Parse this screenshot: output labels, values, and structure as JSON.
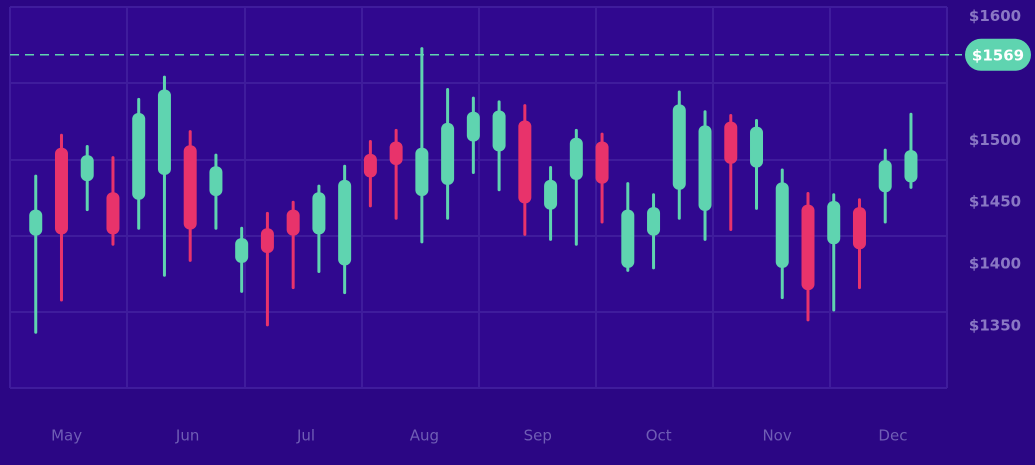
{
  "chart_data": {
    "type": "candlestick",
    "x": [
      0,
      1,
      2,
      3,
      4,
      5,
      6,
      7,
      8,
      9,
      10,
      11,
      12,
      13,
      14,
      15,
      16,
      17,
      18,
      19,
      20,
      21,
      22,
      23,
      24,
      25,
      26,
      27,
      28,
      29,
      30,
      31,
      32,
      33,
      34
    ],
    "open": [
      1423,
      1494,
      1467,
      1458,
      1452,
      1472,
      1496,
      1455,
      1401,
      1429,
      1444,
      1424,
      1399,
      1489,
      1499,
      1455,
      1464,
      1499,
      1491,
      1516,
      1444,
      1468,
      1499,
      1397,
      1423,
      1460,
      1443,
      1515,
      1478,
      1397,
      1448,
      1416,
      1446,
      1458,
      1466
    ],
    "high": [
      1471,
      1504,
      1495,
      1486,
      1533,
      1551,
      1507,
      1488,
      1429,
      1441,
      1450,
      1463,
      1479,
      1499,
      1508,
      1574,
      1541,
      1534,
      1531,
      1528,
      1478,
      1508,
      1505,
      1465,
      1456,
      1539,
      1523,
      1520,
      1516,
      1476,
      1457,
      1456,
      1452,
      1492,
      1521
    ],
    "low": [
      1345,
      1371,
      1444,
      1416,
      1429,
      1391,
      1403,
      1429,
      1378,
      1351,
      1381,
      1394,
      1377,
      1447,
      1437,
      1418,
      1437,
      1474,
      1460,
      1424,
      1420,
      1416,
      1434,
      1395,
      1397,
      1437,
      1420,
      1428,
      1445,
      1373,
      1355,
      1363,
      1381,
      1434,
      1462
    ],
    "close": [
      1444,
      1424,
      1488,
      1424,
      1522,
      1541,
      1428,
      1479,
      1421,
      1409,
      1423,
      1458,
      1468,
      1470,
      1480,
      1494,
      1514,
      1523,
      1524,
      1449,
      1468,
      1502,
      1465,
      1444,
      1446,
      1529,
      1512,
      1481,
      1511,
      1466,
      1379,
      1451,
      1412,
      1484,
      1492
    ],
    "up_color": "#5fd4b0",
    "down_color": "#e8336b",
    "xlim": [
      -1,
      35.4
    ],
    "xticks": [
      {
        "value": 1.2,
        "label": "May"
      },
      {
        "value": 5.9,
        "label": "Jun"
      },
      {
        "value": 10.5,
        "label": "Jul"
      },
      {
        "value": 15.1,
        "label": "Aug"
      },
      {
        "value": 19.5,
        "label": "Sep"
      },
      {
        "value": 24.2,
        "label": "Oct"
      },
      {
        "value": 28.8,
        "label": "Nov"
      },
      {
        "value": 33.3,
        "label": "Dec"
      }
    ],
    "ylim": [
      1300,
      1610
    ],
    "yticks": [
      {
        "value": 1600,
        "label": "$1600"
      },
      {
        "value": 1500,
        "label": "$1500"
      },
      {
        "value": 1450,
        "label": "$1450"
      },
      {
        "value": 1400,
        "label": "$1400"
      },
      {
        "value": 1350,
        "label": "$1350"
      }
    ],
    "price_line": {
      "value": 1569,
      "label": "$1569"
    }
  }
}
